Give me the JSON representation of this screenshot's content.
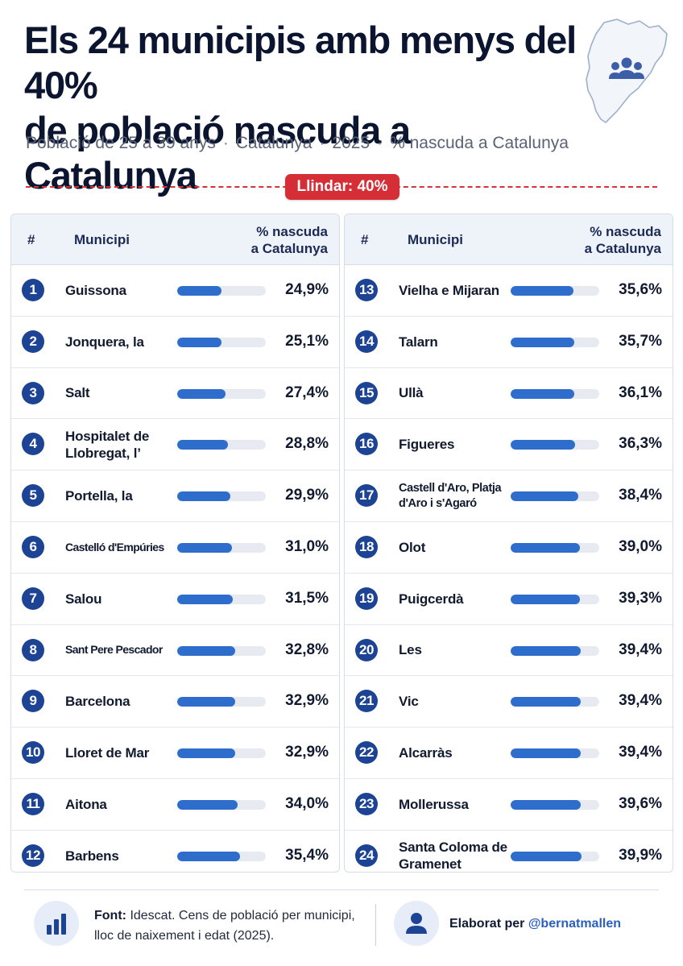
{
  "title_line1": "Els 24 municipis amb menys del 40%",
  "title_line2": "de població nascuda a Catalunya",
  "subtitle": [
    "Població de 25 a 39 anys",
    "Catalunya",
    "2025",
    "% nascuda a Catalunya"
  ],
  "subtitle_separator": "·",
  "threshold_label": "Llindar: 40%",
  "colors": {
    "bar": "#2f6dcc",
    "track": "#e7eaf0",
    "badge": "#1d4394",
    "threshold": "#d52e37"
  },
  "icons": {
    "map": "catalonia-map-people-icon",
    "source": "bar-chart-icon",
    "author": "user-icon"
  },
  "table_header": {
    "num": "#",
    "municipality": "Municipi",
    "pct_line1": "% nascuda",
    "pct_line2": "a Catalunya"
  },
  "chart_data": {
    "type": "bar",
    "orientation": "horizontal",
    "threshold": 40,
    "xlim": [
      0,
      50
    ],
    "categories": [
      "Guissona",
      "Jonquera, la",
      "Salt",
      "Hospitalet de Llobregat, l'",
      "Portella, la",
      "Castelló d'Empúries",
      "Salou",
      "Sant Pere Pescador",
      "Barcelona",
      "Lloret de Mar",
      "Aitona",
      "Barbens",
      "Vielha e Mijaran",
      "Talarn",
      "Ullà",
      "Figueres",
      "Castell d'Aro, Platja d'Aro i s'Agaró",
      "Olot",
      "Puigcerdà",
      "Les",
      "Vic",
      "Alcarràs",
      "Mollerussa",
      "Santa Coloma de Gramenet"
    ],
    "values": [
      24.9,
      25.1,
      27.4,
      28.8,
      29.9,
      31.0,
      31.5,
      32.8,
      32.9,
      32.9,
      34.0,
      35.4,
      35.6,
      35.7,
      36.1,
      36.3,
      38.4,
      39.0,
      39.3,
      39.4,
      39.4,
      39.4,
      39.6,
      39.9
    ]
  },
  "rows": [
    {
      "rank": "1",
      "name": "Guissona",
      "value_label": "24,9%"
    },
    {
      "rank": "2",
      "name": "Jonquera, la",
      "value_label": "25,1%"
    },
    {
      "rank": "3",
      "name": "Salt",
      "value_label": "27,4%"
    },
    {
      "rank": "4",
      "name": "Hospitalet de Llobregat, l’",
      "value_label": "28,8%"
    },
    {
      "rank": "5",
      "name": "Portella, la",
      "value_label": "29,9%"
    },
    {
      "rank": "6",
      "name": "Castelló d'Empúries",
      "value_label": "31,0%"
    },
    {
      "rank": "7",
      "name": "Salou",
      "value_label": "31,5%"
    },
    {
      "rank": "8",
      "name": "Sant Pere Pescador",
      "value_label": "32,8%"
    },
    {
      "rank": "9",
      "name": "Barcelona",
      "value_label": "32,9%"
    },
    {
      "rank": "10",
      "name": "Lloret de Mar",
      "value_label": "32,9%"
    },
    {
      "rank": "11",
      "name": "Aitona",
      "value_label": "34,0%"
    },
    {
      "rank": "12",
      "name": "Barbens",
      "value_label": "35,4%"
    },
    {
      "rank": "13",
      "name": "Vielha e Mijaran",
      "value_label": "35,6%"
    },
    {
      "rank": "14",
      "name": "Talarn",
      "value_label": "35,7%"
    },
    {
      "rank": "15",
      "name": "Ullà",
      "value_label": "36,1%"
    },
    {
      "rank": "16",
      "name": "Figueres",
      "value_label": "36,3%"
    },
    {
      "rank": "17",
      "name": "Castell d'Aro, Platja d'Aro i s'Agaró",
      "value_label": "38,4%"
    },
    {
      "rank": "18",
      "name": "Olot",
      "value_label": "39,0%"
    },
    {
      "rank": "19",
      "name": "Puigcerdà",
      "value_label": "39,3%"
    },
    {
      "rank": "20",
      "name": "Les",
      "value_label": "39,4%"
    },
    {
      "rank": "21",
      "name": "Vic",
      "value_label": "39,4%"
    },
    {
      "rank": "22",
      "name": "Alcarràs",
      "value_label": "39,4%"
    },
    {
      "rank": "23",
      "name": "Mollerussa",
      "value_label": "39,6%"
    },
    {
      "rank": "24",
      "name": "Santa Coloma de Gramenet",
      "value_label": "39,9%"
    }
  ],
  "footer": {
    "source_label": "Font:",
    "source_text": "Idescat. Cens de població per municipi, lloc de naixement i edat (2025).",
    "author_prefix": "Elaborat per",
    "author_handle": "@bernatmallen"
  }
}
